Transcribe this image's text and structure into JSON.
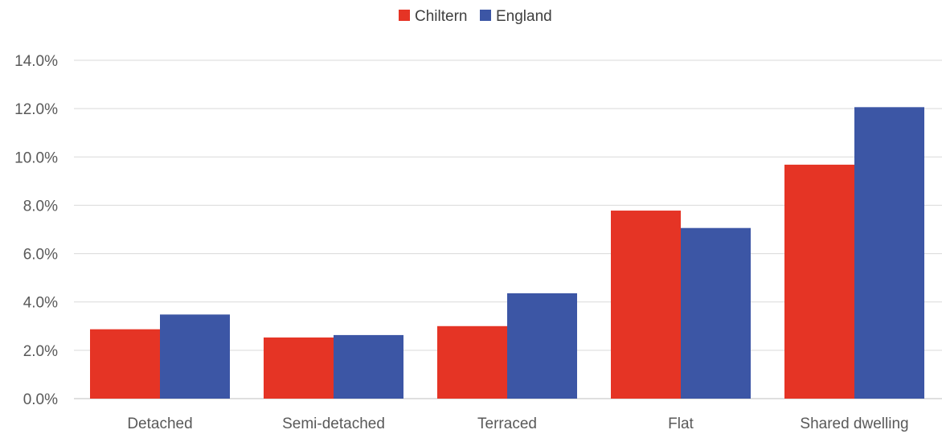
{
  "chart_data": {
    "type": "bar",
    "title": "",
    "xlabel": "",
    "ylabel": "",
    "categories": [
      "Detached",
      "Semi-detached",
      "Terraced",
      "Flat",
      "Shared dwelling"
    ],
    "series": [
      {
        "name": "Chiltern",
        "color": "#e53425",
        "values": [
          2.87,
          2.53,
          3.0,
          7.78,
          9.68
        ]
      },
      {
        "name": "England",
        "color": "#3c56a5",
        "values": [
          3.48,
          2.63,
          4.36,
          7.06,
          12.06
        ]
      }
    ],
    "ylim": [
      0,
      14
    ],
    "y_ticks": [
      0,
      2,
      4,
      6,
      8,
      10,
      12,
      14
    ],
    "y_tick_labels": [
      "0.0%",
      "2.0%",
      "4.0%",
      "6.0%",
      "8.0%",
      "10.0%",
      "12.0%",
      "14.0%"
    ],
    "grid": true,
    "legend_position": "top-center"
  }
}
